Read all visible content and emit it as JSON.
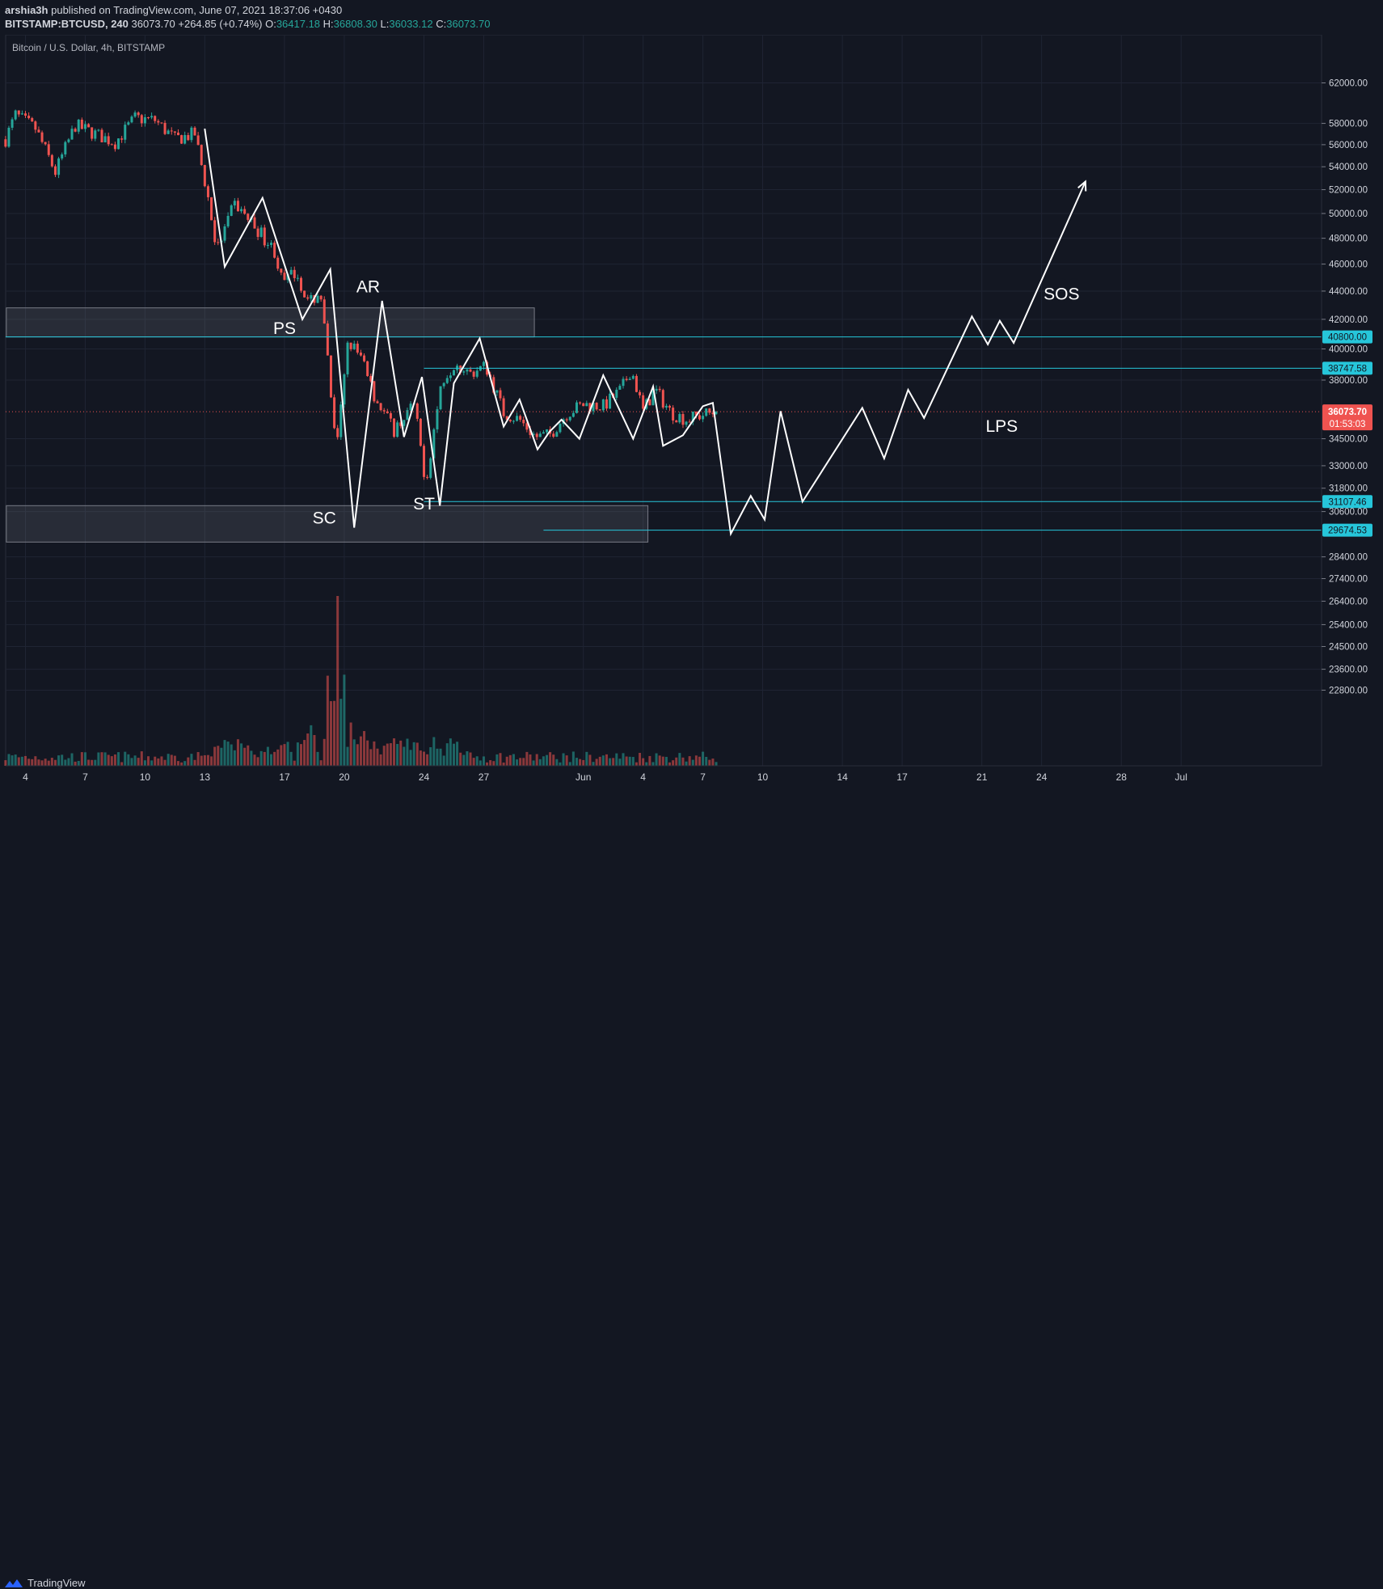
{
  "header": {
    "publisher": "arshia3h",
    "published_text": "published on TradingView.com, June 07, 2021 18:37:06 +0430",
    "symbol": "BITSTAMP:BTCUSD, 240",
    "last": "36073.70",
    "change": "+264.85 (+0.74%)",
    "o_label": "O:",
    "o": "36417.18",
    "h_label": "H:",
    "h": "36808.30",
    "l_label": "L:",
    "l": "36033.12",
    "c_label": "C:",
    "c": "36073.70"
  },
  "chart_title": "Bitcoin / U.S. Dollar, 4h, BITSTAMP",
  "footer": {
    "brand": "TradingView"
  },
  "colors": {
    "background": "#131722",
    "up": "#26a69a",
    "down": "#ef5350",
    "level_line": "#26c6da",
    "grid": "#1f2433"
  },
  "chart_data": {
    "type": "candlestick",
    "title": "Bitcoin / U.S. Dollar, 4h, BITSTAMP",
    "y_scale": "log",
    "ylim": [
      22200,
      62800
    ],
    "y_ticks": [
      "62000.00",
      "58000.00",
      "56000.00",
      "54000.00",
      "52000.00",
      "50000.00",
      "48000.00",
      "46000.00",
      "44000.00",
      "42000.00",
      "40000.00",
      "38000.00",
      "34500.00",
      "33000.00",
      "31800.00",
      "30600.00",
      "28400.00",
      "27400.00",
      "26400.00",
      "25400.00",
      "24500.00",
      "23600.00",
      "22800.00"
    ],
    "x_ticks": [
      {
        "label": "4",
        "day": 4
      },
      {
        "label": "7",
        "day": 7
      },
      {
        "label": "10",
        "day": 10
      },
      {
        "label": "13",
        "day": 13
      },
      {
        "label": "17",
        "day": 17
      },
      {
        "label": "20",
        "day": 20
      },
      {
        "label": "24",
        "day": 24
      },
      {
        "label": "27",
        "day": 27
      },
      {
        "label": "Jun",
        "day": 32
      },
      {
        "label": "4",
        "day": 35
      },
      {
        "label": "7",
        "day": 38
      },
      {
        "label": "10",
        "day": 41
      },
      {
        "label": "14",
        "day": 45
      },
      {
        "label": "17",
        "day": 48
      },
      {
        "label": "21",
        "day": 52
      },
      {
        "label": "24",
        "day": 55
      },
      {
        "label": "28",
        "day": 59
      },
      {
        "label": "Jul",
        "day": 62
      }
    ],
    "x_unit": "day of May 2021 (32 = Jun 1)",
    "candle_days": [
      3,
      38.75
    ],
    "candle_anchors": [
      [
        3,
        56500
      ],
      [
        3.5,
        58800
      ],
      [
        4.5,
        57500
      ],
      [
        5.5,
        53500
      ],
      [
        6.5,
        57800
      ],
      [
        7.5,
        57000
      ],
      [
        8.5,
        56200
      ],
      [
        9.5,
        58500
      ],
      [
        10.5,
        58300
      ],
      [
        11.5,
        56500
      ],
      [
        12.5,
        57000
      ],
      [
        13.2,
        51000
      ],
      [
        13.6,
        47000
      ],
      [
        14.5,
        50800
      ],
      [
        15.5,
        49000
      ],
      [
        16.5,
        47000
      ],
      [
        16.9,
        44500
      ],
      [
        17.6,
        45500
      ],
      [
        18.2,
        43000
      ],
      [
        18.8,
        44000
      ],
      [
        19.6,
        33500
      ],
      [
        20.2,
        40500
      ],
      [
        20.8,
        39500
      ],
      [
        21.5,
        37000
      ],
      [
        22.5,
        35000
      ],
      [
        23.5,
        36500
      ],
      [
        24.1,
        32000
      ],
      [
        24.9,
        38000
      ],
      [
        25.6,
        39200
      ],
      [
        26.3,
        38400
      ],
      [
        27.1,
        38900
      ],
      [
        28.0,
        36000
      ],
      [
        28.8,
        35600
      ],
      [
        29.6,
        34600
      ],
      [
        30.3,
        34700
      ],
      [
        31.2,
        36000
      ],
      [
        32.0,
        36500
      ],
      [
        33.0,
        36400
      ],
      [
        33.9,
        37400
      ],
      [
        34.4,
        38700
      ],
      [
        35.0,
        36100
      ],
      [
        35.6,
        37400
      ],
      [
        36.4,
        36000
      ],
      [
        37.2,
        35600
      ],
      [
        38.0,
        35900
      ],
      [
        38.75,
        36073.7
      ]
    ],
    "last_price": "36073.70",
    "countdown": "01:53:03",
    "price_levels": [
      {
        "value": "40800.00",
        "from_day": 3
      },
      {
        "value": "38747.58",
        "from_day": 24
      },
      {
        "value": "31107.46",
        "from_day": 24
      },
      {
        "value": "29674.53",
        "from_day": 30
      }
    ],
    "zones": [
      {
        "from_day": 3,
        "to_day": 29.5,
        "low": 40800,
        "high": 42800
      },
      {
        "from_day": 3,
        "to_day": 35.2,
        "low": 29100,
        "high": 30900
      }
    ],
    "annotations": [
      {
        "text": "PS",
        "day": 17,
        "price": 41000
      },
      {
        "text": "AR",
        "day": 21.2,
        "price": 43900
      },
      {
        "text": "SC",
        "day": 19,
        "price": 30000
      },
      {
        "text": "ST",
        "day": 24,
        "price": 30700
      },
      {
        "text": "LPS",
        "day": 53,
        "price": 34900
      },
      {
        "text": "SOS",
        "day": 56,
        "price": 43400
      }
    ],
    "wyckoff_path": [
      [
        13,
        57500
      ],
      [
        14,
        45800
      ],
      [
        15.9,
        51300
      ],
      [
        17.9,
        42000
      ],
      [
        19.3,
        45600
      ],
      [
        20.5,
        29800
      ],
      [
        21.9,
        43300
      ],
      [
        23,
        34600
      ],
      [
        23.9,
        38200
      ],
      [
        24.8,
        30900
      ],
      [
        25.5,
        37800
      ],
      [
        26.8,
        40700
      ],
      [
        28,
        35200
      ],
      [
        28.8,
        36800
      ],
      [
        29.7,
        33900
      ],
      [
        30.3,
        34900
      ],
      [
        30.9,
        35600
      ],
      [
        31.8,
        34500
      ],
      [
        33,
        38300
      ],
      [
        34.5,
        34500
      ],
      [
        35.5,
        37600
      ],
      [
        36,
        34100
      ],
      [
        37,
        34700
      ],
      [
        38,
        36400
      ],
      [
        38.5,
        36600
      ],
      [
        39.4,
        29500
      ],
      [
        40.4,
        31400
      ],
      [
        41.1,
        30200
      ],
      [
        41.9,
        36100
      ],
      [
        43,
        31100
      ],
      [
        46,
        36300
      ],
      [
        47.1,
        33400
      ],
      [
        48.3,
        37400
      ],
      [
        49.1,
        35700
      ],
      [
        51.5,
        42200
      ],
      [
        52.3,
        40300
      ],
      [
        52.9,
        41900
      ],
      [
        53.6,
        40400
      ],
      [
        57.2,
        52700
      ]
    ],
    "volume_max_day": 19.6
  }
}
